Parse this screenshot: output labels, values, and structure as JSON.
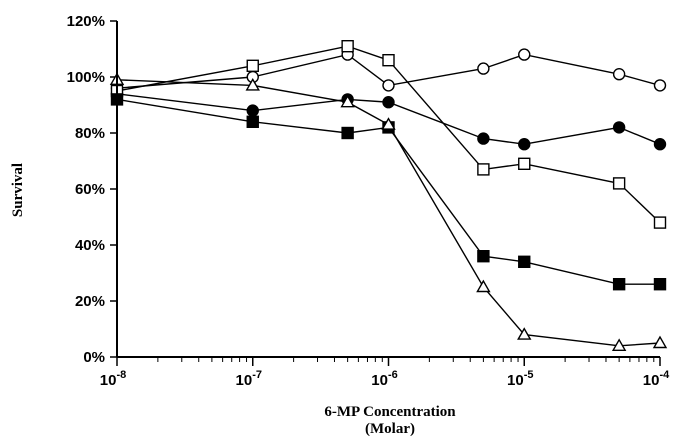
{
  "chart_data": {
    "type": "line",
    "xlabel": "6-MP Concentration",
    "xlabel_unit": "(Molar)",
    "ylabel": "Survival",
    "x_scale": "log",
    "xlim": [
      1e-08,
      0.0001
    ],
    "ylim": [
      0,
      120
    ],
    "y_ticks": [
      "0%",
      "20%",
      "40%",
      "60%",
      "80%",
      "100%",
      "120%"
    ],
    "x_ticks": [
      {
        "base": "10",
        "exp": "-8"
      },
      {
        "base": "10",
        "exp": "-7"
      },
      {
        "base": "10",
        "exp": "-6"
      },
      {
        "base": "10",
        "exp": "-5"
      },
      {
        "base": "10",
        "exp": "-4"
      }
    ],
    "grid": false,
    "legend": "none",
    "x": [
      1e-08,
      1e-07,
      5e-07,
      1e-06,
      5e-06,
      1e-05,
      5e-05,
      0.0001
    ],
    "series": [
      {
        "marker": "open-circle",
        "values": [
          96,
          100,
          108,
          97,
          103,
          108,
          101,
          97
        ]
      },
      {
        "marker": "filled-circle",
        "values": [
          94,
          88,
          92,
          91,
          78,
          76,
          82,
          76
        ]
      },
      {
        "marker": "open-square",
        "values": [
          95,
          104,
          111,
          106,
          67,
          69,
          62,
          48
        ]
      },
      {
        "marker": "filled-square",
        "values": [
          92,
          84,
          80,
          82,
          36,
          34,
          26,
          26
        ]
      },
      {
        "marker": "open-triangle",
        "values": [
          99,
          97,
          91,
          83,
          25,
          8,
          4,
          5
        ]
      }
    ]
  }
}
